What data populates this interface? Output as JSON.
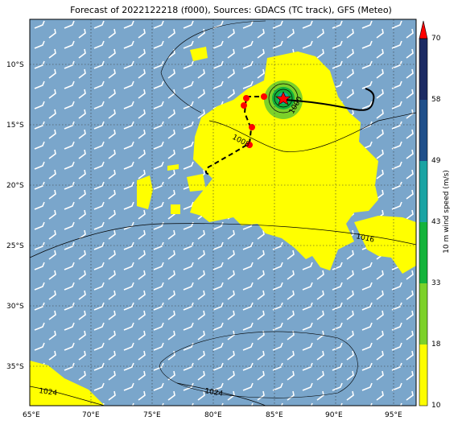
{
  "title": "Forecast of 2022122218 (f000), Sources: GDACS (TC track), GFS (Meteo)",
  "axes": {
    "lat_ticks": [
      "10°S",
      "15°S",
      "20°S",
      "25°S",
      "30°S",
      "35°S"
    ],
    "lon_ticks": [
      "65°E",
      "70°E",
      "75°E",
      "80°E",
      "85°E",
      "90°E",
      "95°E"
    ]
  },
  "isobar_labels": [
    {
      "text": "1008"
    },
    {
      "text": "1000"
    },
    {
      "text": "1016"
    },
    {
      "text": "1024"
    },
    {
      "text": "1024"
    }
  ],
  "colorbar": {
    "label": "10 m wind speed (m/s)",
    "ticks": [
      "70",
      "58",
      "49",
      "43",
      "33",
      "18",
      "10"
    ],
    "colors": [
      "#1c2b63",
      "#1f4f8a",
      "#1aa3a3",
      "#13b33b",
      "#7cd12a",
      "#fdfd00"
    ]
  },
  "colors": {
    "ocean": "#7aa6cb",
    "rain": "#ffff00",
    "track_past": "#000000",
    "storm_symbol": "#ff0000"
  }
}
